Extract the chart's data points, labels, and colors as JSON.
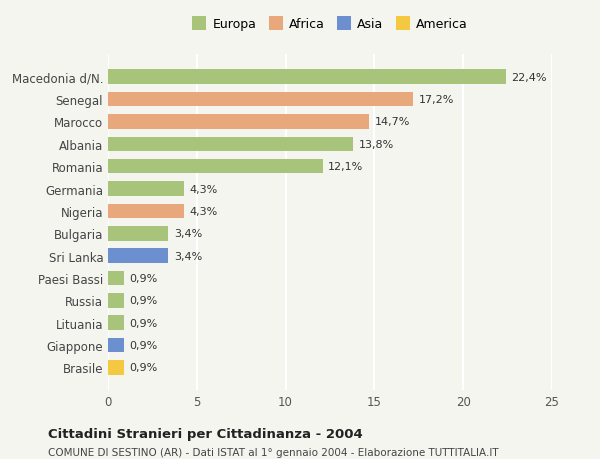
{
  "categories": [
    "Brasile",
    "Giappone",
    "Lituania",
    "Russia",
    "Paesi Bassi",
    "Sri Lanka",
    "Bulgaria",
    "Nigeria",
    "Germania",
    "Romania",
    "Albania",
    "Marocco",
    "Senegal",
    "Macedonia d/N."
  ],
  "values": [
    0.9,
    0.9,
    0.9,
    0.9,
    0.9,
    3.4,
    3.4,
    4.3,
    4.3,
    12.1,
    13.8,
    14.7,
    17.2,
    22.4
  ],
  "labels": [
    "0,9%",
    "0,9%",
    "0,9%",
    "0,9%",
    "0,9%",
    "3,4%",
    "3,4%",
    "4,3%",
    "4,3%",
    "12,1%",
    "13,8%",
    "14,7%",
    "17,2%",
    "22,4%"
  ],
  "colors": [
    "#f5c842",
    "#6b8fcf",
    "#a8c47a",
    "#a8c47a",
    "#a8c47a",
    "#6b8fcf",
    "#a8c47a",
    "#e8a87c",
    "#a8c47a",
    "#a8c47a",
    "#a8c47a",
    "#e8a87c",
    "#e8a87c",
    "#a8c47a"
  ],
  "legend": {
    "Europa": "#a8c47a",
    "Africa": "#e8a87c",
    "Asia": "#6b8fcf",
    "America": "#f5c842"
  },
  "xlim": [
    0,
    25
  ],
  "xticks": [
    0,
    5,
    10,
    15,
    20,
    25
  ],
  "title": "Cittadini Stranieri per Cittadinanza - 2004",
  "subtitle": "COMUNE DI SESTINO (AR) - Dati ISTAT al 1° gennaio 2004 - Elaborazione TUTTITALIA.IT",
  "bg_color": "#f5f5f0",
  "grid_color": "#ffffff",
  "bar_height": 0.65
}
